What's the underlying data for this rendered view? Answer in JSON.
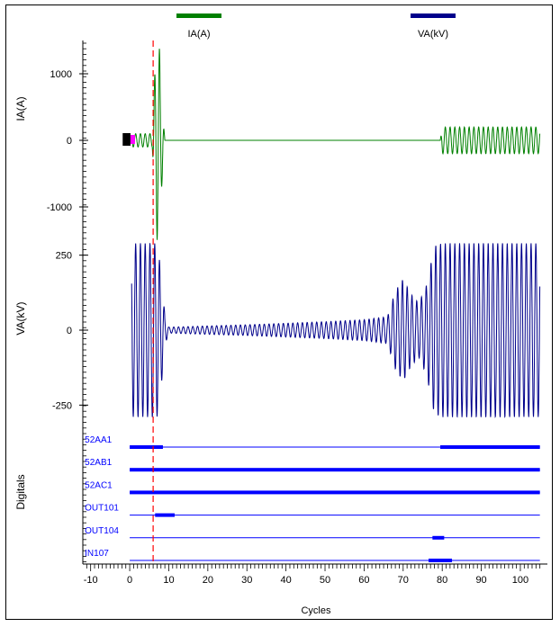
{
  "colors": {
    "ia": "#008000",
    "va": "#00008b",
    "digital": "#0000ff",
    "trigger": "#ff0000",
    "axis": "#000000",
    "marker": "#000000",
    "marker_accent": "#ff00ff"
  },
  "legend": [
    {
      "label": "IA(A)",
      "color": "#008000"
    },
    {
      "label": "VA(kV)",
      "color": "#00008b"
    }
  ],
  "chart_data": {
    "type": "line",
    "xlabel": "Cycles",
    "xlim": [
      -12,
      106
    ],
    "x_ticks": [
      -10,
      0,
      10,
      20,
      30,
      40,
      50,
      60,
      70,
      80,
      90,
      100
    ],
    "trigger_cycle": 6,
    "panels": {
      "ia": {
        "ylabel": "IA(A)",
        "ylim": [
          -1500,
          1500
        ],
        "y_ticks": [
          1000,
          0,
          -1000
        ],
        "start_cycle": 0.5,
        "end_cycle": 105,
        "envelope": [
          [
            0.5,
            100
          ],
          [
            5.8,
            100
          ],
          [
            6.2,
            800
          ],
          [
            7.0,
            1500
          ],
          [
            7.6,
            1400
          ],
          [
            8.0,
            900
          ],
          [
            8.6,
            300
          ],
          [
            9.0,
            0
          ],
          [
            79.5,
            0
          ],
          [
            80.0,
            200
          ],
          [
            105,
            200
          ]
        ]
      },
      "va": {
        "ylabel": "VA(kV)",
        "ylim": [
          -300,
          300
        ],
        "y_ticks": [
          250,
          0,
          -250
        ],
        "start_cycle": 0.5,
        "end_cycle": 105,
        "envelope": [
          [
            0.5,
            290
          ],
          [
            7.0,
            290
          ],
          [
            8.0,
            200
          ],
          [
            9.0,
            50
          ],
          [
            10.0,
            10
          ],
          [
            30,
            18
          ],
          [
            50,
            28
          ],
          [
            60,
            35
          ],
          [
            66,
            45
          ],
          [
            68,
            130
          ],
          [
            70,
            170
          ],
          [
            72,
            120
          ],
          [
            74,
            90
          ],
          [
            76,
            150
          ],
          [
            78,
            280
          ],
          [
            80,
            290
          ],
          [
            105,
            290
          ]
        ]
      }
    },
    "digitals": {
      "ylabel": "Digitals",
      "channels": [
        {
          "name": "52AA1",
          "segments": [
            [
              0,
              8.5
            ],
            [
              79.5,
              105
            ]
          ]
        },
        {
          "name": "52AB1",
          "segments": [
            [
              0,
              105
            ]
          ]
        },
        {
          "name": "52AC1",
          "segments": [
            [
              0,
              105
            ]
          ]
        },
        {
          "name": "OUT101",
          "segments": [
            [
              6.5,
              11.5
            ]
          ]
        },
        {
          "name": "OUT104",
          "segments": [
            [
              77.5,
              80.5
            ]
          ]
        },
        {
          "name": "IN107",
          "segments": [
            [
              76.5,
              82.5
            ]
          ]
        }
      ]
    }
  }
}
